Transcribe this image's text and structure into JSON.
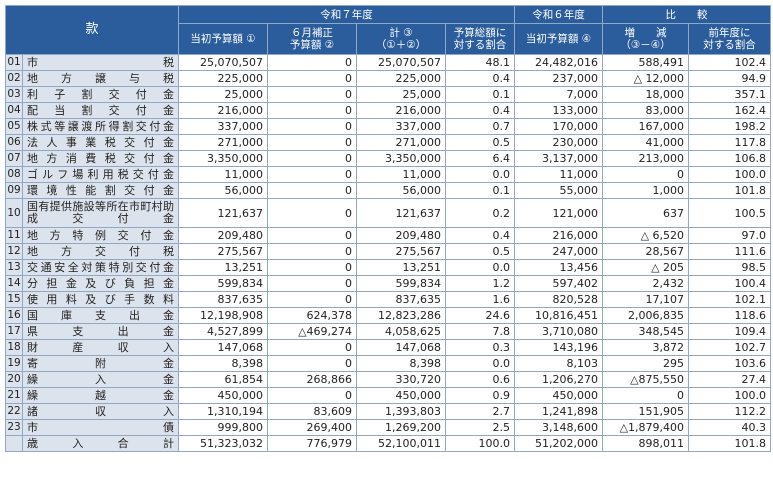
{
  "header": {
    "kuan": "款",
    "r7": "令和７年度",
    "r6": "令和６年度",
    "hikaku": "比　　較",
    "col_initial": "当初予算額 ①",
    "col_june": "６月補正\n予算額 ②",
    "col_total": "計 ③\n（①＋②）",
    "col_ratio": "予算総額に\n対する割合",
    "col_r6_initial": "当初予算額 ④",
    "col_diff": "増　　減\n（③－④）",
    "col_prev_ratio": "前年度に\n対する割合"
  },
  "rows": [
    {
      "no": "01",
      "name": "市税",
      "initial": "25,070,507",
      "june": "0",
      "total": "25,070,507",
      "ratio": "48.1",
      "r6": "24,482,016",
      "diff": "588,491",
      "prev_ratio": "102.4"
    },
    {
      "no": "02",
      "name": "地方譲与税",
      "initial": "225,000",
      "june": "0",
      "total": "225,000",
      "ratio": "0.4",
      "r6": "237,000",
      "diff": "△ 12,000",
      "prev_ratio": "94.9"
    },
    {
      "no": "03",
      "name": "利子割交付金",
      "initial": "25,000",
      "june": "0",
      "total": "25,000",
      "ratio": "0.1",
      "r6": "7,000",
      "diff": "18,000",
      "prev_ratio": "357.1"
    },
    {
      "no": "04",
      "name": "配当割交付金",
      "initial": "216,000",
      "june": "0",
      "total": "216,000",
      "ratio": "0.4",
      "r6": "133,000",
      "diff": "83,000",
      "prev_ratio": "162.4"
    },
    {
      "no": "05",
      "name": "株式等譲渡所得割交付金",
      "initial": "337,000",
      "june": "0",
      "total": "337,000",
      "ratio": "0.7",
      "r6": "170,000",
      "diff": "167,000",
      "prev_ratio": "198.2"
    },
    {
      "no": "06",
      "name": "法人事業税交付金",
      "initial": "271,000",
      "june": "0",
      "total": "271,000",
      "ratio": "0.5",
      "r6": "230,000",
      "diff": "41,000",
      "prev_ratio": "117.8"
    },
    {
      "no": "07",
      "name": "地方消費税交付金",
      "initial": "3,350,000",
      "june": "0",
      "total": "3,350,000",
      "ratio": "6.4",
      "r6": "3,137,000",
      "diff": "213,000",
      "prev_ratio": "106.8"
    },
    {
      "no": "08",
      "name": "ゴルフ場利用税交付金",
      "initial": "11,000",
      "june": "0",
      "total": "11,000",
      "ratio": "0.0",
      "r6": "11,000",
      "diff": "0",
      "prev_ratio": "100.0"
    },
    {
      "no": "09",
      "name": "環境性能割交付金",
      "initial": "56,000",
      "june": "0",
      "total": "56,000",
      "ratio": "0.1",
      "r6": "55,000",
      "diff": "1,000",
      "prev_ratio": "101.8"
    },
    {
      "no": "10",
      "name": "国有提供施設等所在市町村助成交付金",
      "initial": "121,637",
      "june": "0",
      "total": "121,637",
      "ratio": "0.2",
      "r6": "121,000",
      "diff": "637",
      "prev_ratio": "100.5",
      "two_line": true
    },
    {
      "no": "11",
      "name": "地方特例交付金",
      "initial": "209,480",
      "june": "0",
      "total": "209,480",
      "ratio": "0.4",
      "r6": "216,000",
      "diff": "△ 6,520",
      "prev_ratio": "97.0"
    },
    {
      "no": "12",
      "name": "地方交付税",
      "initial": "275,567",
      "june": "0",
      "total": "275,567",
      "ratio": "0.5",
      "r6": "247,000",
      "diff": "28,567",
      "prev_ratio": "111.6"
    },
    {
      "no": "13",
      "name": "交通安全対策特別交付金",
      "initial": "13,251",
      "june": "0",
      "total": "13,251",
      "ratio": "0.0",
      "r6": "13,456",
      "diff": "△ 205",
      "prev_ratio": "98.5"
    },
    {
      "no": "14",
      "name": "分担金及び負担金",
      "initial": "599,834",
      "june": "0",
      "total": "599,834",
      "ratio": "1.2",
      "r6": "597,402",
      "diff": "2,432",
      "prev_ratio": "100.4"
    },
    {
      "no": "15",
      "name": "使用料及び手数料",
      "initial": "837,635",
      "june": "0",
      "total": "837,635",
      "ratio": "1.6",
      "r6": "820,528",
      "diff": "17,107",
      "prev_ratio": "102.1"
    },
    {
      "no": "16",
      "name": "国庫支出金",
      "initial": "12,198,908",
      "june": "624,378",
      "total": "12,823,286",
      "ratio": "24.6",
      "r6": "10,816,451",
      "diff": "2,006,835",
      "prev_ratio": "118.6"
    },
    {
      "no": "17",
      "name": "県支出金",
      "initial": "4,527,899",
      "june": "△469,274",
      "total": "4,058,625",
      "ratio": "7.8",
      "r6": "3,710,080",
      "diff": "348,545",
      "prev_ratio": "109.4"
    },
    {
      "no": "18",
      "name": "財産収入",
      "initial": "147,068",
      "june": "0",
      "total": "147,068",
      "ratio": "0.3",
      "r6": "143,196",
      "diff": "3,872",
      "prev_ratio": "102.7"
    },
    {
      "no": "19",
      "name": "寄附金",
      "initial": "8,398",
      "june": "0",
      "total": "8,398",
      "ratio": "0.0",
      "r6": "8,103",
      "diff": "295",
      "prev_ratio": "103.6"
    },
    {
      "no": "20",
      "name": "繰入金",
      "initial": "61,854",
      "june": "268,866",
      "total": "330,720",
      "ratio": "0.6",
      "r6": "1,206,270",
      "diff": "△875,550",
      "prev_ratio": "27.4"
    },
    {
      "no": "21",
      "name": "繰越金",
      "initial": "450,000",
      "june": "0",
      "total": "450,000",
      "ratio": "0.9",
      "r6": "450,000",
      "diff": "0",
      "prev_ratio": "100.0"
    },
    {
      "no": "22",
      "name": "諸収入",
      "initial": "1,310,194",
      "june": "83,609",
      "total": "1,393,803",
      "ratio": "2.7",
      "r6": "1,241,898",
      "diff": "151,905",
      "prev_ratio": "112.2"
    },
    {
      "no": "23",
      "name": "市債",
      "initial": "999,800",
      "june": "269,400",
      "total": "1,269,200",
      "ratio": "2.5",
      "r6": "3,148,600",
      "diff": "△1,879,400",
      "prev_ratio": "40.3"
    }
  ],
  "total": {
    "name": "歳入合計",
    "initial": "51,323,032",
    "june": "776,979",
    "total": "52,100,011",
    "ratio": "100.0",
    "r6": "51,202,000",
    "diff": "898,011",
    "prev_ratio": "101.8"
  }
}
